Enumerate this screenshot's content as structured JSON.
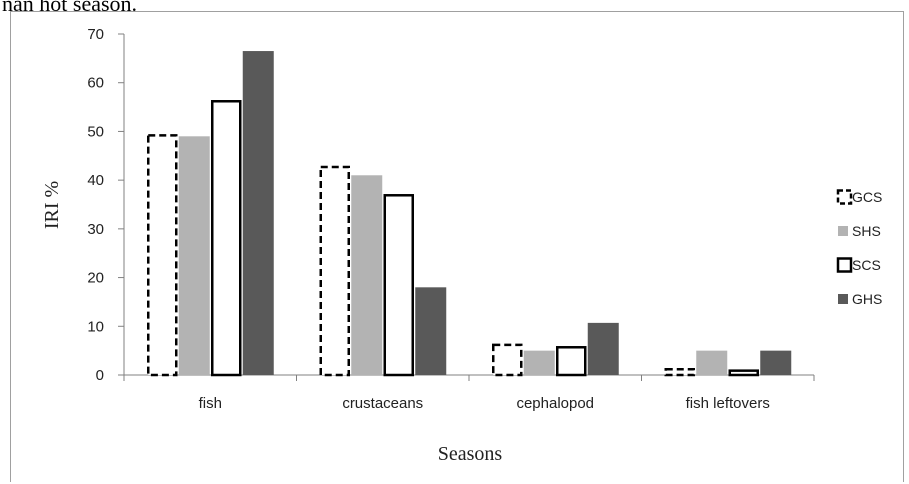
{
  "page": {
    "caption_fragment": "nan hot season."
  },
  "chart_data": {
    "type": "bar",
    "title": "",
    "xlabel": "Seasons",
    "ylabel": "IRI %",
    "ylim": [
      0,
      70
    ],
    "yticks": [
      0,
      10,
      20,
      30,
      40,
      50,
      60,
      70
    ],
    "grid": false,
    "legend_position": "right",
    "categories": [
      "fish",
      "crustaceans",
      "cephalopod",
      "fish leftovers"
    ],
    "series": [
      {
        "name": "GCS",
        "values": [
          49.5,
          43,
          6.5,
          1.5
        ],
        "style": "dashed-outline",
        "color": "#000000"
      },
      {
        "name": "SHS",
        "values": [
          49,
          41,
          5,
          5
        ],
        "style": "solid-fill",
        "color": "#b3b3b3"
      },
      {
        "name": "SCS",
        "values": [
          56.5,
          37.2,
          6,
          1.2
        ],
        "style": "solid-outline",
        "color": "#000000"
      },
      {
        "name": "GHS",
        "values": [
          66.5,
          18,
          10.7,
          5
        ],
        "style": "solid-fill",
        "color": "#595959"
      }
    ]
  }
}
